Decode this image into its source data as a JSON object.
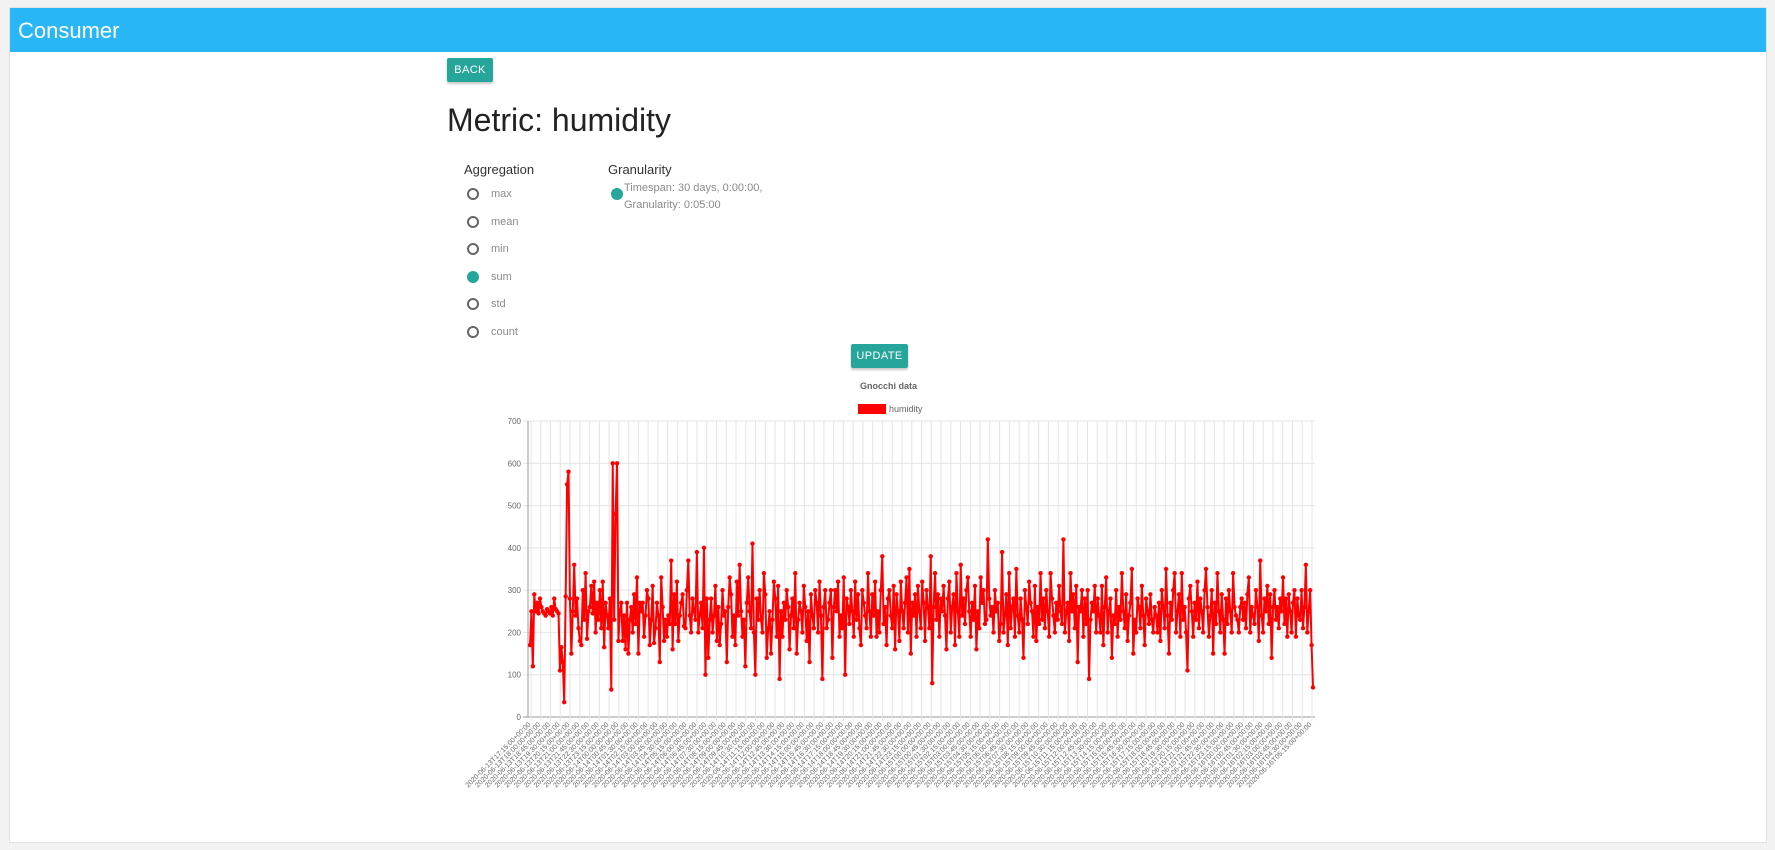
{
  "app": {
    "title": "Consumer"
  },
  "back_label": "BACK",
  "page_title": "Metric: humidity",
  "aggregation": {
    "label": "Aggregation",
    "options": [
      "max",
      "mean",
      "min",
      "sum",
      "std",
      "count"
    ],
    "selected": "sum"
  },
  "granularity": {
    "label": "Granularity",
    "option_line1": "Timespan: 30 days, 0:00:00,",
    "option_line2": "Granularity: 0:05:00",
    "selected": true
  },
  "update_label": "UPDATE",
  "colors": {
    "appbar": "#29b6f6",
    "accent": "#26a69a",
    "series": "#ff0000"
  },
  "chart_data": {
    "type": "line",
    "title": "Gnocchi data",
    "series": [
      {
        "name": "humidity",
        "color": "#ff0000",
        "values": [
          170,
          250,
          120,
          290,
          250,
          270,
          245,
          280,
          260,
          250,
          245,
          240,
          255,
          250,
          245,
          260,
          240,
          280,
          255,
          250,
          245,
          110,
          165,
          130,
          35,
          285,
          550,
          580,
          280,
          150,
          250,
          360,
          240,
          280,
          210,
          180,
          170,
          300,
          230,
          340,
          185,
          250,
          260,
          310,
          245,
          320,
          200,
          270,
          230,
          300,
          210,
          320,
          165,
          270,
          240,
          210,
          280,
          65,
          600,
          230,
          480,
          600,
          180,
          250,
          270,
          180,
          240,
          160,
          270,
          150,
          230,
          260,
          200,
          290,
          220,
          330,
          150,
          270,
          250,
          270,
          190,
          240,
          300,
          280,
          170,
          230,
          310,
          175,
          210,
          270,
          240,
          130,
          330,
          260,
          180,
          230,
          190,
          240,
          220,
          370,
          160,
          290,
          220,
          320,
          180,
          240,
          270,
          290,
          215,
          210,
          300,
          370,
          240,
          200,
          280,
          250,
          230,
          390,
          200,
          240,
          270,
          210,
          400,
          100,
          280,
          140,
          230,
          280,
          200,
          240,
          310,
          180,
          260,
          170,
          220,
          300,
          240,
          250,
          130,
          260,
          330,
          290,
          190,
          240,
          170,
          320,
          240,
          360,
          250,
          190,
          230,
          120,
          270,
          330,
          250,
          210,
          410,
          200,
          100,
          280,
          230,
          300,
          230,
          200,
          340,
          290,
          140,
          210,
          250,
          150,
          230,
          320,
          280,
          190,
          310,
          90,
          250,
          190,
          270,
          230,
          300,
          260,
          160,
          240,
          280,
          210,
          340,
          150,
          230,
          270,
          250,
          200,
          310,
          260,
          180,
          250,
          130,
          290,
          240,
          210,
          300,
          270,
          200,
          320,
          240,
          90,
          260,
          300,
          210,
          230,
          270,
          300,
          140,
          260,
          300,
          250,
          320,
          190,
          240,
          210,
          330,
          100,
          280,
          260,
          220,
          300,
          250,
          190,
          320,
          230,
          290,
          210,
          170,
          300,
          270,
          240,
          210,
          340,
          250,
          190,
          290,
          240,
          320,
          190,
          250,
          200,
          300,
          380,
          220,
          260,
          170,
          280,
          300,
          240,
          210,
          310,
          160,
          290,
          250,
          180,
          320,
          250,
          210,
          270,
          330,
          200,
          350,
          150,
          270,
          240,
          290,
          190,
          310,
          250,
          210,
          320,
          270,
          180,
          300,
          260,
          210,
          380,
          80,
          260,
          340,
          230,
          290,
          190,
          280,
          250,
          310,
          240,
          160,
          280,
          320,
          200,
          260,
          290,
          170,
          340,
          250,
          190,
          360,
          240,
          280,
          220,
          300,
          330,
          250,
          190,
          270,
          230,
          310,
          160,
          250,
          210,
          330,
          270,
          300,
          220,
          230,
          420,
          280,
          240,
          260,
          200,
          300,
          250,
          270,
          180,
          220,
          390,
          200,
          240,
          290,
          170,
          340,
          210,
          260,
          280,
          190,
          350,
          240,
          200,
          280,
          230,
          140,
          300,
          260,
          220,
          320,
          270,
          250,
          190,
          310,
          180,
          260,
          220,
          340,
          230,
          280,
          210,
          300,
          250,
          190,
          340,
          280,
          240,
          200,
          270,
          230,
          310,
          250,
          220,
          420,
          200,
          250,
          270,
          180,
          340,
          250,
          290,
          210,
          310,
          130,
          260,
          250,
          300,
          190,
          280,
          220,
          300,
          90,
          230,
          270,
          250,
          310,
          200,
          280,
          240,
          200,
          310,
          170,
          260,
          330,
          200,
          250,
          280,
          140,
          240,
          220,
          300,
          190,
          260,
          230,
          340,
          250,
          210,
          290,
          180,
          240,
          270,
          350,
          150,
          230,
          200,
          280,
          260,
          210,
          310,
          240,
          170,
          280,
          250,
          220,
          290,
          230,
          200,
          260,
          240,
          200,
          270,
          180,
          300,
          260,
          210,
          350,
          240,
          150,
          270,
          230,
          300,
          340,
          200,
          250,
          290,
          190,
          340,
          230,
          260,
          200,
          110,
          280,
          310,
          250,
          190,
          270,
          230,
          320,
          210,
          280,
          250,
          200,
          300,
          350,
          260,
          190,
          240,
          300,
          150,
          270,
          220,
          340,
          250,
          200,
          290,
          230,
          150,
          280,
          220,
          300,
          250,
          200,
          340,
          260,
          240,
          230,
          200,
          260,
          280,
          230,
          270,
          210,
          290,
          330,
          200,
          260,
          240,
          220,
          300,
          260,
          180,
          370,
          240,
          200,
          280,
          250,
          310,
          220,
          290,
          140,
          260,
          300,
          230,
          260,
          210,
          280,
          250,
          330,
          220,
          280,
          190,
          290,
          250,
          200,
          270,
          300,
          190,
          280,
          240,
          230,
          300,
          210,
          260,
          360,
          200,
          250,
          300,
          170,
          70
        ]
      }
    ],
    "ylim": [
      0,
      700
    ],
    "yticks": [
      0,
      100,
      200,
      300,
      400,
      500,
      600,
      700
    ],
    "x_labels": [
      "2020-06-13T17:15:00+00:00",
      "2020-06-13T18:00:00+00:00",
      "2020-06-13T18:45:00+00:00",
      "2020-06-13T19:30:00+00:00",
      "2020-06-13T20:15:00+00:00",
      "2020-06-13T21:00:00+00:00",
      "2020-06-13T21:45:00+00:00",
      "2020-06-13T22:30:00+00:00",
      "2020-06-13T23:15:00+00:00",
      "2020-06-14T00:00:00+00:00",
      "2020-06-14T00:45:00+00:00",
      "2020-06-14T01:30:00+00:00",
      "2020-06-14T02:15:00+00:00",
      "2020-06-14T03:00:00+00:00",
      "2020-06-14T03:45:00+00:00",
      "2020-06-14T04:30:00+00:00",
      "2020-06-14T05:15:00+00:00",
      "2020-06-14T06:00:00+00:00",
      "2020-06-14T06:45:00+00:00",
      "2020-06-14T07:30:00+00:00",
      "2020-06-14T08:15:00+00:00",
      "2020-06-14T09:00:00+00:00",
      "2020-06-14T09:45:00+00:00",
      "2020-06-14T10:30:00+00:00",
      "2020-06-14T11:15:00+00:00",
      "2020-06-14T12:00:00+00:00",
      "2020-06-14T12:45:00+00:00",
      "2020-06-14T13:30:00+00:00",
      "2020-06-14T14:15:00+00:00",
      "2020-06-14T15:00:00+00:00",
      "2020-06-14T15:45:00+00:00",
      "2020-06-14T16:30:00+00:00",
      "2020-06-14T17:15:00+00:00",
      "2020-06-14T18:00:00+00:00",
      "2020-06-14T18:45:00+00:00",
      "2020-06-14T19:30:00+00:00",
      "2020-06-14T20:15:00+00:00",
      "2020-06-14T21:00:00+00:00",
      "2020-06-14T21:45:00+00:00",
      "2020-06-14T22:30:00+00:00",
      "2020-06-14T23:15:00+00:00",
      "2020-06-15T00:00:00+00:00",
      "2020-06-15T00:45:00+00:00",
      "2020-06-15T01:30:00+00:00",
      "2020-06-15T02:15:00+00:00",
      "2020-06-15T03:00:00+00:00",
      "2020-06-15T03:45:00+00:00",
      "2020-06-15T04:30:00+00:00",
      "2020-06-15T05:15:00+00:00",
      "2020-06-15T06:00:00+00:00",
      "2020-06-15T06:45:00+00:00",
      "2020-06-15T07:30:00+00:00",
      "2020-06-15T08:15:00+00:00",
      "2020-06-15T09:00:00+00:00",
      "2020-06-15T09:45:00+00:00",
      "2020-06-15T10:30:00+00:00",
      "2020-06-15T11:15:00+00:00",
      "2020-06-15T12:00:00+00:00",
      "2020-06-15T12:45:00+00:00",
      "2020-06-15T13:30:00+00:00",
      "2020-06-15T14:15:00+00:00",
      "2020-06-15T15:00:00+00:00",
      "2020-06-15T15:45:00+00:00",
      "2020-06-15T16:30:00+00:00",
      "2020-06-15T17:15:00+00:00",
      "2020-06-15T18:00:00+00:00",
      "2020-06-15T18:45:00+00:00",
      "2020-06-15T19:30:00+00:00",
      "2020-06-15T20:15:00+00:00",
      "2020-06-15T21:00:00+00:00",
      "2020-06-15T21:45:00+00:00",
      "2020-06-15T22:30:00+00:00",
      "2020-06-15T23:15:00+00:00",
      "2020-06-16T00:00:00+00:00",
      "2020-06-16T00:45:00+00:00",
      "2020-06-16T01:30:00+00:00",
      "2020-06-16T02:15:00+00:00",
      "2020-06-16T03:00:00+00:00",
      "2020-06-16T03:45:00+00:00",
      "2020-06-16T04:30:00+00:00",
      "2020-06-16T05:15:00+00:00"
    ],
    "legend_position": "top-center",
    "grid": true
  }
}
